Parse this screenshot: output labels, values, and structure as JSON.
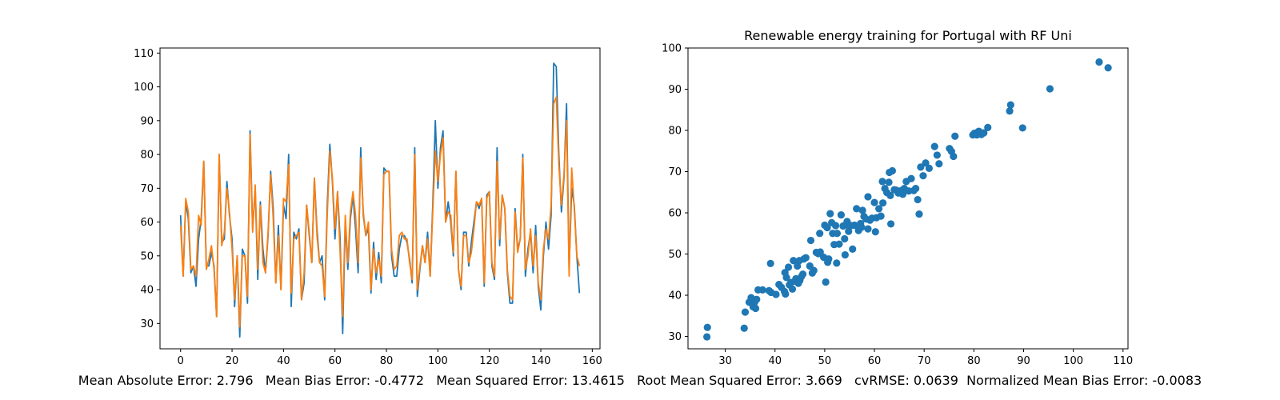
{
  "colors": {
    "actual": "#1f77b4",
    "predicted": "#ff7f0e",
    "scatter": "#1f77b4"
  },
  "metrics_text": "Mean Absolute Error: 2.796   Mean Bias Error: -0.4772   Mean Squared Error: 13.4615   Root Mean Squared Error: 3.669   cvRMSE: 0.0639  Normalized Mean Bias Error: -0.0083",
  "chart_data": [
    {
      "type": "line",
      "title": "",
      "xlabel": "",
      "ylabel": "",
      "xlim": [
        -8,
        163
      ],
      "ylim": [
        22.5,
        111.5
      ],
      "xticks": [
        0,
        20,
        40,
        60,
        80,
        100,
        120,
        140,
        160
      ],
      "yticks": [
        30,
        40,
        50,
        60,
        70,
        80,
        90,
        100,
        110
      ],
      "grid": false,
      "series": [
        {
          "values": [
            62,
            44,
            66,
            61,
            45,
            47,
            41,
            55,
            61,
            78,
            47,
            47,
            51,
            47,
            32,
            80,
            54,
            55,
            72,
            62,
            55,
            35,
            50,
            26,
            52,
            50,
            36,
            87,
            58,
            70,
            43,
            66,
            52,
            45,
            56,
            75,
            64,
            42,
            59,
            40,
            65,
            61,
            80,
            35,
            57,
            55,
            58,
            37,
            42,
            65,
            56,
            48,
            73,
            58,
            48,
            50,
            37,
            65,
            83,
            72,
            55,
            69,
            55,
            27,
            60,
            46,
            61,
            68,
            58,
            45,
            82,
            62,
            56,
            58,
            39,
            54,
            43,
            51,
            42,
            76,
            75,
            75,
            50,
            44,
            44,
            52,
            56,
            56,
            54,
            49,
            42,
            82,
            38,
            46,
            53,
            48,
            57,
            44,
            65,
            90,
            70,
            82,
            87,
            60,
            66,
            60,
            50,
            75,
            46,
            40,
            57,
            57,
            47,
            54,
            60,
            66,
            64,
            67,
            41,
            68,
            69,
            47,
            43,
            82,
            53,
            68,
            64,
            45,
            36,
            36,
            64,
            52,
            55,
            80,
            44,
            52,
            57,
            45,
            59,
            41,
            34,
            50,
            60,
            52,
            62,
            107,
            106,
            80,
            63,
            73,
            95,
            46,
            70,
            65,
            50,
            39
          ]
        },
        {
          "values": [
            59,
            44,
            67,
            63,
            46,
            47,
            44,
            62,
            59,
            78,
            46,
            49,
            53,
            46,
            32,
            80,
            53,
            57,
            70,
            63,
            52,
            37,
            50,
            29,
            50,
            50,
            38,
            86,
            57,
            71,
            46,
            65,
            48,
            45,
            57,
            74,
            61,
            42,
            56,
            40,
            67,
            66,
            77,
            39,
            55,
            56,
            57,
            37,
            45,
            65,
            57,
            48,
            73,
            56,
            48,
            47,
            38,
            62,
            81,
            73,
            58,
            69,
            51,
            32,
            62,
            48,
            63,
            69,
            62,
            48,
            79,
            63,
            56,
            60,
            40,
            52,
            45,
            49,
            44,
            74,
            75,
            75,
            52,
            46,
            47,
            56,
            57,
            55,
            55,
            48,
            43,
            80,
            40,
            47,
            53,
            48,
            55,
            44,
            63,
            81,
            72,
            80,
            85,
            60,
            63,
            62,
            51,
            75,
            46,
            41,
            56,
            56,
            48,
            51,
            58,
            66,
            65,
            67,
            42,
            67,
            69,
            48,
            44,
            78,
            55,
            68,
            64,
            46,
            38,
            37,
            63,
            51,
            55,
            79,
            46,
            50,
            58,
            47,
            56,
            42,
            37,
            52,
            58,
            55,
            65,
            95,
            97,
            77,
            65,
            74,
            90,
            44,
            76,
            64,
            50,
            47
          ]
        }
      ]
    },
    {
      "type": "scatter",
      "title": "Renewable energy training for Portugal with RF Uni",
      "xlabel": "",
      "ylabel": "",
      "xlim": [
        22.5,
        111
      ],
      "ylim": [
        27,
        100
      ],
      "xticks": [
        30,
        40,
        50,
        60,
        70,
        80,
        90,
        100,
        110
      ],
      "yticks": [
        30,
        40,
        50,
        60,
        70,
        80,
        90,
        100
      ],
      "grid": false,
      "x": [
        26.3,
        26.4,
        33.8,
        34.0,
        34.8,
        35.2,
        35.6,
        35.9,
        36.1,
        36.3,
        37.5,
        38.8,
        39.2,
        40.2,
        40.8,
        41.3,
        41.9,
        42.1,
        42.3,
        42.7,
        42.9,
        43.2,
        43.5,
        43.7,
        44.0,
        44.2,
        44.5,
        44.7,
        45.0,
        45.3,
        45.8,
        46.2,
        47.2,
        47.5,
        47.8,
        48.3,
        48.7,
        49.0,
        49.8,
        50.2,
        50.5,
        50.6,
        50.8,
        51.1,
        51.4,
        51.6,
        51.9,
        52.2,
        52.5,
        52.9,
        53.3,
        53.7,
        54.1,
        54.5,
        54.9,
        55.3,
        55.6,
        56.0,
        56.4,
        56.8,
        57.2,
        57.6,
        57.9,
        58.3,
        58.7,
        59.1,
        59.5,
        60.0,
        60.4,
        60.9,
        61.3,
        61.7,
        62.1,
        62.5,
        62.9,
        63.2,
        63.6,
        64.0,
        64.4,
        64.8,
        65.4,
        66.0,
        66.4,
        66.9,
        67.4,
        67.9,
        68.3,
        68.7,
        69.3,
        69.8,
        70.3,
        71.0,
        72.1,
        72.6,
        73.0,
        75.1,
        75.5,
        75.9,
        76.2,
        79.8,
        80.1,
        80.5,
        81.0,
        81.5,
        82.0,
        82.8,
        87.2,
        87.4,
        89.8,
        95.3,
        105.2,
        107.0,
        36.6,
        39.1,
        42.0,
        44.9,
        47.0,
        50.0,
        52.4,
        54.8,
        57.4,
        60.2,
        63.0,
        65.7,
        63.3,
        80.6,
        54.0,
        45.6,
        49.1,
        58.7,
        61.6,
        65.2,
        69.0
      ],
      "y": [
        29.9,
        32.2,
        32.0,
        35.9,
        38.3,
        39.4,
        37.2,
        38.3,
        36.8,
        39.0,
        41.3,
        41.1,
        40.7,
        40.2,
        42.6,
        41.9,
        40.9,
        40.3,
        44.3,
        46.8,
        42.5,
        43.1,
        41.5,
        48.4,
        43.4,
        44.0,
        47.1,
        42.9,
        43.6,
        44.5,
        48.8,
        49.1,
        53.3,
        45.4,
        46.0,
        50.4,
        50.1,
        55.0,
        49.2,
        43.2,
        56.4,
        48.0,
        48.8,
        59.8,
        57.6,
        55.0,
        52.3,
        56.9,
        55.0,
        52.4,
        59.5,
        56.8,
        49.8,
        57.9,
        56.7,
        56.9,
        51.2,
        57.0,
        61.0,
        55.7,
        57.4,
        60.6,
        59.1,
        58.5,
        56.1,
        58.2,
        58.7,
        62.5,
        58.8,
        61.0,
        59.2,
        62.4,
        65.9,
        64.9,
        67.4,
        64.2,
        70.2,
        65.6,
        65.5,
        64.8,
        65.4,
        65.9,
        67.6,
        65.3,
        68.3,
        65.4,
        65.9,
        63.2,
        71.1,
        69.0,
        72.1,
        70.8,
        76.1,
        74.0,
        71.9,
        75.6,
        74.9,
        73.7,
        78.6,
        78.9,
        79.3,
        79.4,
        79.8,
        79.0,
        79.4,
        80.7,
        84.7,
        86.2,
        80.6,
        90.1,
        96.6,
        95.2,
        41.3,
        47.7,
        45.5,
        48.4,
        47.1,
        57.0,
        47.8,
        55.5,
        56.5,
        55.4,
        69.8,
        64.5,
        57.3,
        78.9,
        53.7,
        45.1,
        50.5,
        63.9,
        67.6,
        65.0,
        59.7
      ]
    }
  ]
}
